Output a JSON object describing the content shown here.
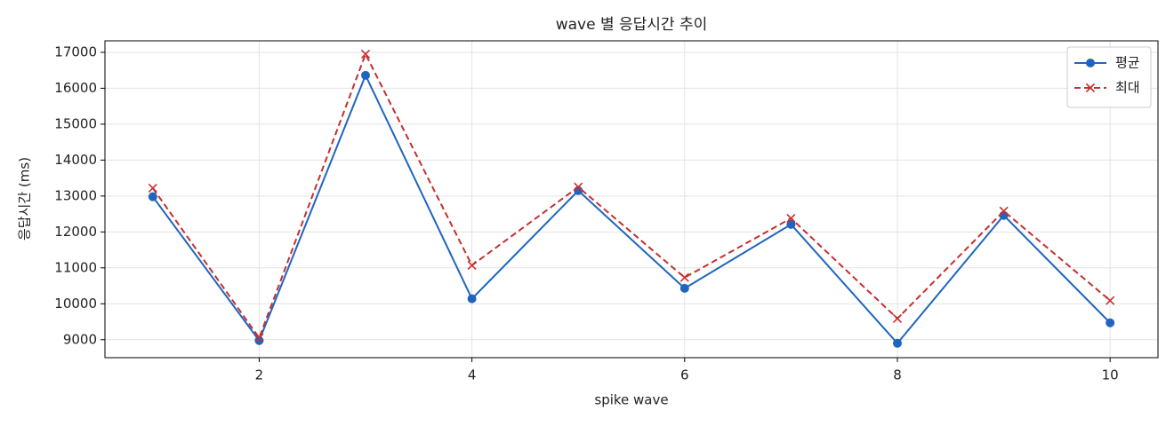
{
  "chart_data": {
    "type": "line",
    "title": "wave 별 응답시간 추이",
    "xlabel": "spike wave",
    "ylabel": "응답시간 (ms)",
    "x": [
      1,
      2,
      3,
      4,
      5,
      6,
      7,
      8,
      9,
      10
    ],
    "series": [
      {
        "name": "평균",
        "color": "#1f65bf",
        "marker": "o",
        "linestyle": "solid",
        "values": [
          12980,
          8975,
          16360,
          10140,
          13150,
          10430,
          12210,
          8900,
          12460,
          9470
        ]
      },
      {
        "name": "최대",
        "color": "#c62f2f",
        "marker": "x",
        "linestyle": "dashed",
        "values": [
          13220,
          9050,
          16950,
          11070,
          13250,
          10730,
          12380,
          9590,
          12580,
          10090
        ]
      }
    ],
    "xlim": [
      0.55,
      10.45
    ],
    "xticks": [
      2,
      4,
      6,
      8,
      10
    ],
    "ylim": [
      8500,
      17320
    ],
    "yticks": [
      9000,
      10000,
      11000,
      12000,
      13000,
      14000,
      15000,
      16000,
      17000
    ],
    "grid": true,
    "legend": "upper right"
  }
}
